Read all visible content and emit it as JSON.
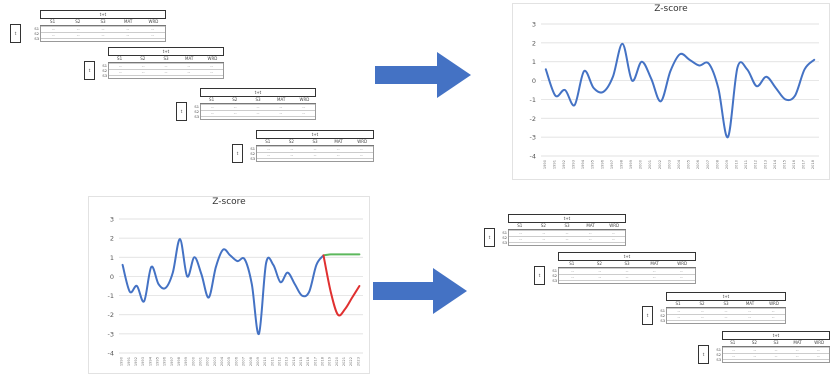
{
  "matrix": {
    "title": "t+t",
    "columns": [
      "S1",
      "S2",
      "S3",
      "MAT",
      "WRD"
    ],
    "row_labels": [
      "S1",
      "S2",
      "S3"
    ],
    "cell": "--",
    "t_label": "t"
  },
  "chart_data": [
    {
      "type": "line",
      "title": "Z-score",
      "xlabel": "",
      "ylabel": "",
      "ylim": [
        -4,
        3
      ],
      "yticks": [
        3,
        2,
        1,
        0,
        -1,
        -2,
        -3,
        -4
      ],
      "grid": true,
      "x": [
        "1990",
        "1991",
        "1992",
        "1993",
        "1994",
        "1995",
        "1996",
        "1997",
        "1998",
        "1999",
        "2000",
        "2001",
        "2002",
        "2003",
        "2004",
        "2005",
        "2006",
        "2007",
        "2008",
        "2009",
        "2010",
        "2011",
        "2012",
        "2013",
        "2014",
        "2015",
        "2016",
        "2017",
        "2018"
      ],
      "series": [
        {
          "color": "#4472C4",
          "values": [
            0.6,
            -0.8,
            -0.5,
            -1.3,
            0.5,
            -0.4,
            -0.6,
            0.2,
            1.95,
            0.0,
            1.0,
            0.1,
            -1.1,
            0.5,
            1.4,
            1.1,
            0.8,
            0.9,
            -0.4,
            -3.0,
            0.7,
            0.6,
            -0.3,
            0.2,
            -0.4,
            -1.0,
            -0.8,
            0.6,
            1.1
          ]
        }
      ]
    },
    {
      "type": "line",
      "title": "Z-score",
      "xlabel": "",
      "ylabel": "",
      "ylim": [
        -4,
        3
      ],
      "yticks": [
        3,
        2,
        1,
        0,
        -1,
        -2,
        -3,
        -4
      ],
      "grid": true,
      "x": [
        "1990",
        "1991",
        "1992",
        "1993",
        "1994",
        "1995",
        "1996",
        "1997",
        "1998",
        "1999",
        "2000",
        "2001",
        "2002",
        "2003",
        "2004",
        "2005",
        "2006",
        "2007",
        "2008",
        "2009",
        "2010",
        "2011",
        "2012",
        "2013",
        "2014",
        "2015",
        "2016",
        "2017",
        "2018",
        "2019",
        "2020",
        "2021",
        "2022",
        "2023"
      ],
      "series": [
        {
          "color": "#4472C4",
          "values": [
            0.6,
            -0.8,
            -0.5,
            -1.3,
            0.5,
            -0.4,
            -0.6,
            0.2,
            1.95,
            0.0,
            1.0,
            0.1,
            -1.1,
            0.5,
            1.4,
            1.1,
            0.8,
            0.9,
            -0.4,
            -3.0,
            0.7,
            0.6,
            -0.3,
            0.2,
            -0.4,
            -1.0,
            -0.8,
            0.6,
            1.1,
            null,
            null,
            null,
            null,
            null
          ]
        },
        {
          "color": "#5CB85C",
          "values": [
            null,
            null,
            null,
            null,
            null,
            null,
            null,
            null,
            null,
            null,
            null,
            null,
            null,
            null,
            null,
            null,
            null,
            null,
            null,
            null,
            null,
            null,
            null,
            null,
            null,
            null,
            null,
            null,
            1.1,
            1.15,
            1.15,
            1.15,
            1.15,
            1.15
          ]
        },
        {
          "color": "#E03030",
          "values": [
            null,
            null,
            null,
            null,
            null,
            null,
            null,
            null,
            null,
            null,
            null,
            null,
            null,
            null,
            null,
            null,
            null,
            null,
            null,
            null,
            null,
            null,
            null,
            null,
            null,
            null,
            null,
            null,
            1.1,
            -0.8,
            -2.0,
            -1.7,
            -1.1,
            -0.5
          ]
        }
      ]
    }
  ]
}
